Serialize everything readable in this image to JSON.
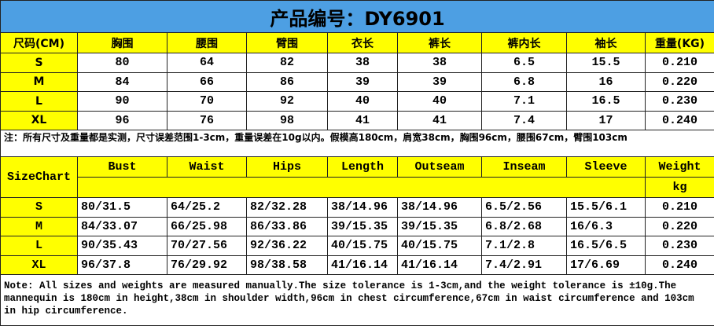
{
  "title": "产品编号：DY6901",
  "cn": {
    "header": [
      "尺码(CM)",
      "胸围",
      "腰围",
      "臂围",
      "衣长",
      "裤长",
      "裤内长",
      "袖长",
      "重量(KG)"
    ],
    "rows": [
      [
        "S",
        "80",
        "64",
        "82",
        "38",
        "38",
        "6.5",
        "15.5",
        "0.210"
      ],
      [
        "M",
        "84",
        "66",
        "86",
        "39",
        "39",
        "6.8",
        "16",
        "0.220"
      ],
      [
        "L",
        "90",
        "70",
        "92",
        "40",
        "40",
        "7.1",
        "16.5",
        "0.230"
      ],
      [
        "XL",
        "96",
        "76",
        "98",
        "41",
        "41",
        "7.4",
        "17",
        "0.240"
      ]
    ],
    "note": "注：所有尺寸及重量都是实测，尺寸误差范围1-3cm，重量误差在10g以内。假模高180cm，肩宽38cm，胸围96cm，腰围67cm，臂围103cm"
  },
  "en": {
    "header": [
      "SizeChart",
      "Bust",
      "Waist",
      "Hips",
      "Length",
      "Outseam",
      "Inseam",
      "Sleeve",
      "Weight"
    ],
    "unit": "kg",
    "rows": [
      [
        "S",
        "80/31.5",
        "64/25.2",
        "82/32.28",
        "38/14.96",
        "38/14.96",
        "6.5/2.56",
        "15.5/6.1",
        "0.210"
      ],
      [
        "M",
        "84/33.07",
        "66/25.98",
        "86/33.86",
        "39/15.35",
        "39/15.35",
        "6.8/2.68",
        "16/6.3",
        "0.220"
      ],
      [
        "L",
        "90/35.43",
        "70/27.56",
        "92/36.22",
        "40/15.75",
        "40/15.75",
        "7.1/2.8",
        "16.5/6.5",
        "0.230"
      ],
      [
        "XL",
        "96/37.8",
        "76/29.92",
        "98/38.58",
        "41/16.14",
        "41/16.14",
        "7.4/2.91",
        "17/6.69",
        "0.240"
      ]
    ],
    "note": "Note: All sizes and weights are measured manually.The size tolerance is 1-3cm,and the weight tolerance is ±10g.The mannequin is 180cm in height,38cm in shoulder width,96cm in chest circumference,67cm in waist circumference and 103cm in hip circumference."
  }
}
